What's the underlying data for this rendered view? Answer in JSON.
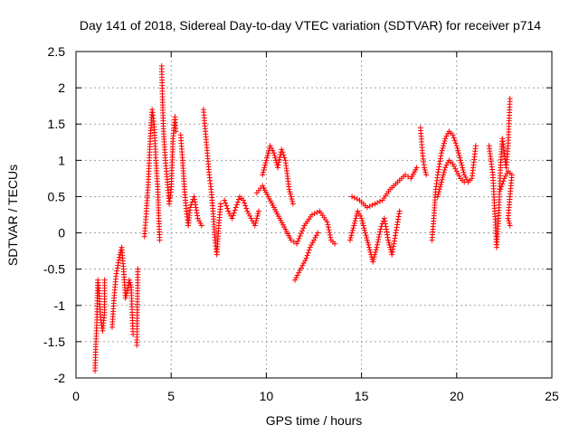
{
  "chart_data": {
    "type": "scatter",
    "title": "Day 141 of 2018, Sidereal Day-to-day VTEC variation (SDTVAR) for receiver p714",
    "xlabel": "GPS time / hours",
    "ylabel": "SDTVAR / TECUs",
    "xlim": [
      0,
      25
    ],
    "ylim": [
      -2,
      2.5
    ],
    "xticks": [
      0,
      5,
      10,
      15,
      20,
      25
    ],
    "xtick_labels": [
      "0",
      "5",
      "10",
      "15",
      "20",
      "25"
    ],
    "yticks": [
      -2,
      -1.5,
      -1,
      -0.5,
      0,
      0.5,
      1,
      1.5,
      2,
      2.5
    ],
    "ytick_labels": [
      "-2",
      "-1.5",
      "-1",
      "-0.5",
      "0",
      "0.5",
      "1",
      "1.5",
      "2",
      "2.5"
    ],
    "grid": true,
    "marker": "+",
    "color": "#ff0000",
    "series": [
      {
        "name": "SDTVAR",
        "tracks": [
          [
            [
              1.0,
              -1.9
            ],
            [
              1.05,
              -1.5
            ],
            [
              1.1,
              -1.2
            ],
            [
              1.12,
              -0.9
            ],
            [
              1.15,
              -0.65
            ],
            [
              1.2,
              -0.8
            ],
            [
              1.3,
              -1.2
            ],
            [
              1.4,
              -1.35
            ],
            [
              1.5,
              -1.1
            ],
            [
              1.5,
              -0.65
            ]
          ],
          [
            [
              1.9,
              -1.3
            ],
            [
              2.0,
              -0.9
            ],
            [
              2.1,
              -0.6
            ],
            [
              2.2,
              -0.45
            ],
            [
              2.3,
              -0.3
            ],
            [
              2.4,
              -0.2
            ],
            [
              2.5,
              -0.5
            ],
            [
              2.6,
              -0.9
            ],
            [
              2.7,
              -0.8
            ],
            [
              2.8,
              -0.65
            ],
            [
              2.9,
              -0.75
            ],
            [
              3.0,
              -1.4
            ]
          ],
          [
            [
              3.2,
              -1.55
            ],
            [
              3.25,
              -0.5
            ]
          ],
          [
            [
              3.6,
              -0.05
            ],
            [
              3.7,
              0.3
            ],
            [
              3.8,
              0.7
            ],
            [
              3.9,
              1.3
            ],
            [
              4.0,
              1.7
            ],
            [
              4.1,
              1.5
            ],
            [
              4.2,
              1.0
            ],
            [
              4.3,
              0.6
            ],
            [
              4.35,
              0.2
            ],
            [
              4.4,
              -0.1
            ]
          ],
          [
            [
              4.5,
              2.3
            ],
            [
              4.55,
              1.8
            ],
            [
              4.6,
              1.4
            ],
            [
              4.7,
              1.0
            ],
            [
              4.8,
              0.7
            ],
            [
              4.9,
              0.4
            ],
            [
              5.0,
              0.6
            ],
            [
              5.1,
              1.3
            ],
            [
              5.2,
              1.6
            ],
            [
              5.25,
              1.4
            ]
          ],
          [
            [
              5.5,
              1.35
            ],
            [
              5.6,
              1.0
            ],
            [
              5.7,
              0.6
            ],
            [
              5.8,
              0.3
            ],
            [
              5.9,
              0.1
            ],
            [
              6.0,
              0.35
            ],
            [
              6.2,
              0.5
            ],
            [
              6.4,
              0.2
            ],
            [
              6.6,
              0.1
            ]
          ],
          [
            [
              6.7,
              1.7
            ],
            [
              6.8,
              1.4
            ],
            [
              6.9,
              1.1
            ],
            [
              7.0,
              0.8
            ],
            [
              7.1,
              0.6
            ],
            [
              7.2,
              0.3
            ],
            [
              7.3,
              -0.1
            ],
            [
              7.4,
              -0.3
            ],
            [
              7.5,
              0.1
            ],
            [
              7.6,
              0.4
            ]
          ],
          [
            [
              7.8,
              0.45
            ],
            [
              8.0,
              0.3
            ],
            [
              8.2,
              0.2
            ],
            [
              8.4,
              0.35
            ],
            [
              8.6,
              0.5
            ],
            [
              8.8,
              0.45
            ],
            [
              9.0,
              0.3
            ],
            [
              9.2,
              0.2
            ],
            [
              9.4,
              0.1
            ],
            [
              9.6,
              0.3
            ]
          ],
          [
            [
              9.8,
              0.8
            ],
            [
              10.0,
              1.0
            ],
            [
              10.2,
              1.2
            ],
            [
              10.4,
              1.1
            ],
            [
              10.6,
              0.9
            ],
            [
              10.8,
              1.15
            ],
            [
              11.0,
              1.0
            ],
            [
              11.2,
              0.6
            ],
            [
              11.4,
              0.4
            ]
          ],
          [
            [
              9.5,
              0.55
            ],
            [
              9.8,
              0.65
            ],
            [
              10.1,
              0.5
            ],
            [
              10.4,
              0.35
            ],
            [
              10.7,
              0.2
            ],
            [
              11.0,
              0.05
            ],
            [
              11.3,
              -0.1
            ],
            [
              11.6,
              -0.15
            ],
            [
              12.0,
              0.1
            ],
            [
              12.4,
              0.25
            ],
            [
              12.8,
              0.3
            ],
            [
              13.2,
              0.15
            ],
            [
              13.4,
              -0.1
            ],
            [
              13.6,
              -0.15
            ]
          ],
          [
            [
              11.5,
              -0.65
            ],
            [
              11.7,
              -0.55
            ],
            [
              11.9,
              -0.45
            ],
            [
              12.1,
              -0.35
            ],
            [
              12.3,
              -0.2
            ],
            [
              12.5,
              -0.1
            ],
            [
              12.7,
              0.0
            ]
          ],
          [
            [
              14.4,
              -0.1
            ],
            [
              14.6,
              0.1
            ],
            [
              14.8,
              0.3
            ],
            [
              15.0,
              0.2
            ],
            [
              15.2,
              0.0
            ],
            [
              15.4,
              -0.2
            ],
            [
              15.6,
              -0.4
            ],
            [
              15.8,
              -0.2
            ],
            [
              16.0,
              0.05
            ],
            [
              16.2,
              0.2
            ],
            [
              16.4,
              -0.1
            ],
            [
              16.6,
              -0.3
            ],
            [
              16.8,
              0.0
            ],
            [
              17.0,
              0.3
            ]
          ],
          [
            [
              14.5,
              0.5
            ],
            [
              14.9,
              0.45
            ],
            [
              15.3,
              0.35
            ],
            [
              15.7,
              0.4
            ],
            [
              16.1,
              0.45
            ],
            [
              16.5,
              0.6
            ],
            [
              16.9,
              0.7
            ],
            [
              17.3,
              0.8
            ],
            [
              17.6,
              0.75
            ],
            [
              17.9,
              0.9
            ]
          ],
          [
            [
              18.1,
              1.45
            ],
            [
              18.2,
              1.1
            ],
            [
              18.3,
              0.9
            ],
            [
              18.4,
              0.8
            ]
          ],
          [
            [
              18.7,
              -0.1
            ],
            [
              18.8,
              0.2
            ],
            [
              18.9,
              0.6
            ],
            [
              19.0,
              0.8
            ],
            [
              19.2,
              1.1
            ],
            [
              19.4,
              1.3
            ],
            [
              19.6,
              1.4
            ],
            [
              19.8,
              1.35
            ],
            [
              20.0,
              1.2
            ],
            [
              20.2,
              1.0
            ],
            [
              20.4,
              0.8
            ],
            [
              20.6,
              0.7
            ],
            [
              20.8,
              0.75
            ],
            [
              21.0,
              1.2
            ]
          ],
          [
            [
              19.0,
              0.5
            ],
            [
              19.2,
              0.7
            ],
            [
              19.4,
              0.9
            ],
            [
              19.6,
              1.0
            ],
            [
              19.8,
              0.95
            ],
            [
              20.0,
              0.85
            ],
            [
              20.2,
              0.75
            ],
            [
              20.4,
              0.7
            ]
          ],
          [
            [
              21.7,
              1.2
            ],
            [
              21.9,
              0.8
            ],
            [
              22.0,
              0.3
            ],
            [
              22.1,
              -0.2
            ],
            [
              22.2,
              0.2
            ],
            [
              22.3,
              0.9
            ],
            [
              22.4,
              1.3
            ],
            [
              22.5,
              1.1
            ],
            [
              22.6,
              0.9
            ],
            [
              22.7,
              1.2
            ],
            [
              22.8,
              1.85
            ]
          ],
          [
            [
              22.3,
              0.6
            ],
            [
              22.5,
              0.75
            ],
            [
              22.7,
              0.85
            ],
            [
              22.9,
              0.8
            ],
            [
              22.7,
              0.2
            ],
            [
              22.8,
              0.1
            ]
          ]
        ]
      }
    ]
  }
}
